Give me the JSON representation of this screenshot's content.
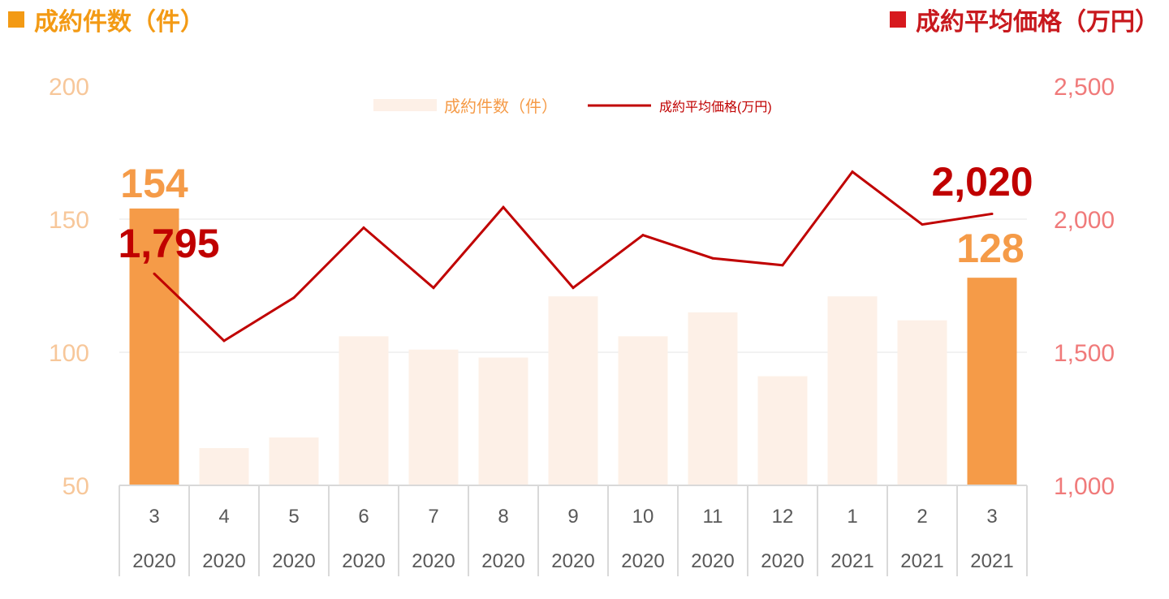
{
  "header": {
    "left_title": "成約件数（件）",
    "right_title": "成約平均価格（万円）",
    "left_color": "#f39a14",
    "right_color": "#c8191e"
  },
  "chart_data": {
    "type": "bar+line",
    "categories": [
      {
        "month": "3",
        "year": "2020"
      },
      {
        "month": "4",
        "year": "2020"
      },
      {
        "month": "5",
        "year": "2020"
      },
      {
        "month": "6",
        "year": "2020"
      },
      {
        "month": "7",
        "year": "2020"
      },
      {
        "month": "8",
        "year": "2020"
      },
      {
        "month": "9",
        "year": "2020"
      },
      {
        "month": "10",
        "year": "2020"
      },
      {
        "month": "11",
        "year": "2020"
      },
      {
        "month": "12",
        "year": "2020"
      },
      {
        "month": "1",
        "year": "2021"
      },
      {
        "month": "2",
        "year": "2021"
      },
      {
        "month": "3",
        "year": "2021"
      }
    ],
    "series": [
      {
        "name": "成約件数（件）",
        "type": "bar",
        "axis": "left",
        "values": [
          154,
          64,
          68,
          106,
          101,
          98,
          121,
          106,
          115,
          91,
          121,
          112,
          128
        ],
        "highlight": [
          0,
          12
        ],
        "color": "#fdf0e7",
        "highlight_color": "#f59b48"
      },
      {
        "name": "成約平均価格(万円)",
        "type": "line",
        "axis": "right",
        "values": [
          1795,
          1543,
          1705,
          1968,
          1742,
          2045,
          1742,
          1940,
          1853,
          1827,
          2178,
          1980,
          2020
        ],
        "color": "#c00000"
      }
    ],
    "left_axis": {
      "min": 50,
      "max": 200,
      "ticks": [
        "50",
        "100",
        "150",
        "200"
      ],
      "color": "#f7c79a"
    },
    "right_axis": {
      "min": 1000,
      "max": 2500,
      "ticks": [
        "1,000",
        "1,500",
        "2,000",
        "2,500"
      ],
      "color": "#f07a7a"
    },
    "data_labels": [
      {
        "series": 0,
        "index": 0,
        "text": "154",
        "color": "#f59b48"
      },
      {
        "series": 0,
        "index": 12,
        "text": "128",
        "color": "#f59b48"
      },
      {
        "series": 1,
        "index": 0,
        "text": "1,795",
        "color": "#c00000"
      },
      {
        "series": 1,
        "index": 12,
        "text": "2,020",
        "color": "#c00000"
      }
    ],
    "legend": {
      "position": "top-center",
      "bar_label": "成約件数（件）",
      "line_label": "成約平均価格(万円)"
    },
    "grid": true
  }
}
